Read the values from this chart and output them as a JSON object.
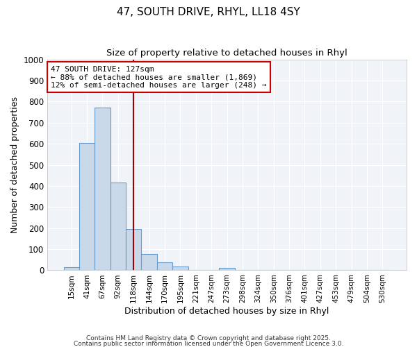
{
  "title": "47, SOUTH DRIVE, RHYL, LL18 4SY",
  "subtitle": "Size of property relative to detached houses in Rhyl",
  "xlabel": "Distribution of detached houses by size in Rhyl",
  "ylabel": "Number of detached properties",
  "bar_color": "#c9d9ea",
  "bar_edge_color": "#6699cc",
  "background_color": "#ffffff",
  "plot_bg_color": "#f0f4f8",
  "grid_color": "#ffffff",
  "categories": [
    "15sqm",
    "41sqm",
    "67sqm",
    "92sqm",
    "118sqm",
    "144sqm",
    "170sqm",
    "195sqm",
    "221sqm",
    "247sqm",
    "273sqm",
    "298sqm",
    "324sqm",
    "350sqm",
    "376sqm",
    "401sqm",
    "427sqm",
    "453sqm",
    "479sqm",
    "504sqm",
    "530sqm"
  ],
  "values": [
    15,
    605,
    770,
    415,
    195,
    78,
    38,
    18,
    0,
    0,
    12,
    0,
    0,
    0,
    0,
    0,
    0,
    0,
    0,
    0,
    0
  ],
  "ylim": [
    0,
    1000
  ],
  "yticks": [
    0,
    100,
    200,
    300,
    400,
    500,
    600,
    700,
    800,
    900,
    1000
  ],
  "property_line_x": 4,
  "property_line_color": "#990000",
  "annotation_box_color": "#ffffff",
  "annotation_box_edge": "#cc0000",
  "annotation_title": "47 SOUTH DRIVE: 127sqm",
  "annotation_line1": "← 88% of detached houses are smaller (1,869)",
  "annotation_line2": "12% of semi-detached houses are larger (248) →",
  "footer1": "Contains HM Land Registry data © Crown copyright and database right 2025.",
  "footer2": "Contains public sector information licensed under the Open Government Licence 3.0."
}
